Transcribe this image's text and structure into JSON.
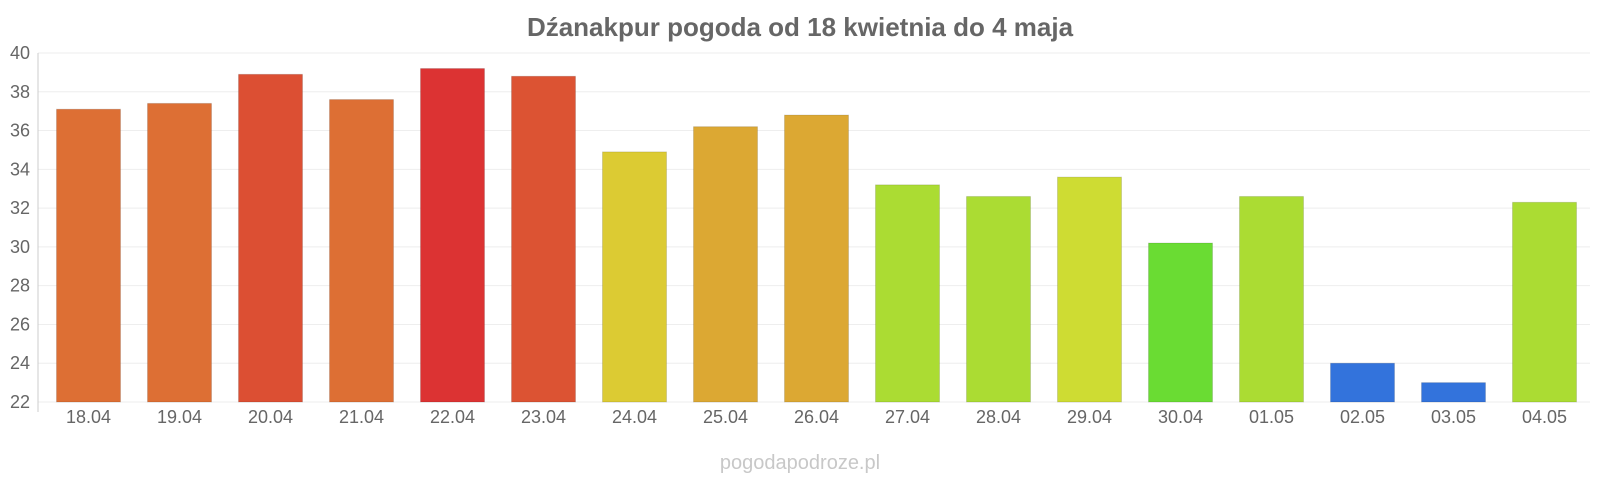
{
  "chart_data": {
    "type": "bar",
    "title": "Dźanakpur pogoda od 18 kwietnia do 4 maja",
    "xlabel": "",
    "ylabel": "",
    "ylim": [
      22,
      40
    ],
    "yticks": [
      22,
      24,
      26,
      28,
      30,
      32,
      34,
      36,
      38,
      40
    ],
    "grid": true,
    "categories": [
      "18.04",
      "19.04",
      "20.04",
      "21.04",
      "22.04",
      "23.04",
      "24.04",
      "25.04",
      "26.04",
      "27.04",
      "28.04",
      "29.04",
      "30.04",
      "01.05",
      "02.05",
      "03.05",
      "04.05"
    ],
    "values": [
      37.1,
      37.4,
      38.9,
      37.6,
      39.2,
      38.8,
      34.9,
      36.2,
      36.8,
      33.2,
      32.6,
      33.6,
      30.2,
      32.6,
      24.0,
      23.0,
      32.3
    ],
    "colors": [
      "#dd6f34",
      "#dd6f34",
      "#dc4f33",
      "#dd6f34",
      "#dc3333",
      "#dc5333",
      "#dccb33",
      "#dca833",
      "#dca833",
      "#abdc33",
      "#abdc33",
      "#cedc33",
      "#6adc33",
      "#abdc33",
      "#3373dc",
      "#3373dc",
      "#abdc33"
    ]
  },
  "watermark": "pogodapodroze.pl"
}
